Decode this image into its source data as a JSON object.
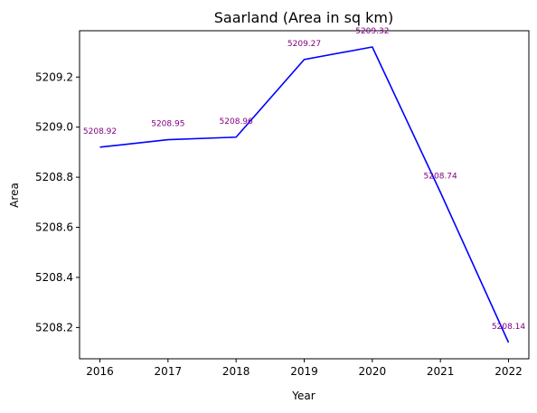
{
  "chart_data": {
    "type": "line",
    "title": "Saarland (Area in sq km)",
    "xlabel": "Year",
    "ylabel": "Area",
    "x": [
      "2016",
      "2017",
      "2018",
      "2019",
      "2020",
      "2021",
      "2022"
    ],
    "series": [
      {
        "values": [
          5208.92,
          5208.95,
          5208.96,
          5209.27,
          5209.32,
          5208.74,
          5208.14
        ]
      }
    ],
    "data_labels": [
      "5208.92",
      "5208.95",
      "5208.96",
      "5209.27",
      "5209.32",
      "5208.74",
      "5208.14"
    ],
    "yticks": [
      "5208.2",
      "5208.4",
      "5208.6",
      "5208.8",
      "5209.0",
      "5209.2"
    ],
    "ylim": [
      5208.075,
      5209.385
    ],
    "grid": false,
    "line_color": "#0000ff",
    "label_color": "#800080"
  }
}
